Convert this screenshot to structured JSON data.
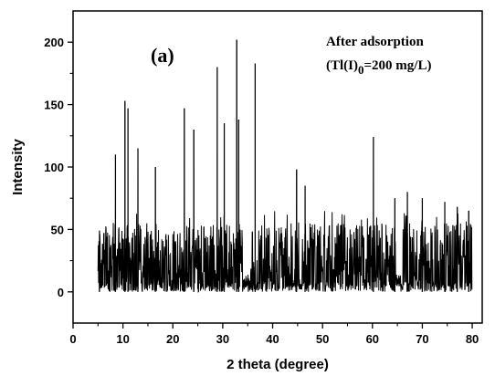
{
  "chart_data": {
    "type": "line",
    "panel_label": "(a)",
    "annotation": {
      "line1": "After adsorption",
      "line2_prefix": "(Tl(I)",
      "line2_sub": "0",
      "line2_suffix": "=200 mg/L)"
    },
    "xlabel": "2 theta (degree)",
    "ylabel": "Intensity",
    "xlim": [
      0,
      82
    ],
    "ylim": [
      -25,
      225
    ],
    "xticks": [
      0,
      10,
      20,
      30,
      40,
      50,
      60,
      70,
      80
    ],
    "yticks": [
      0,
      50,
      100,
      150,
      200
    ],
    "grid": false,
    "series": [
      {
        "x_range": [
          5,
          80
        ],
        "baseline": 0,
        "typical_max": 55,
        "peaks": [
          {
            "x": 5.3,
            "y": 49
          },
          {
            "x": 8.5,
            "y": 110
          },
          {
            "x": 10.4,
            "y": 153
          },
          {
            "x": 11.0,
            "y": 147
          },
          {
            "x": 13.0,
            "y": 115
          },
          {
            "x": 16.5,
            "y": 100
          },
          {
            "x": 22.3,
            "y": 147
          },
          {
            "x": 24.2,
            "y": 130
          },
          {
            "x": 28.9,
            "y": 180
          },
          {
            "x": 30.3,
            "y": 135
          },
          {
            "x": 32.8,
            "y": 202
          },
          {
            "x": 33.2,
            "y": 138
          },
          {
            "x": 36.5,
            "y": 183
          },
          {
            "x": 44.8,
            "y": 98
          },
          {
            "x": 46.5,
            "y": 85
          },
          {
            "x": 60.2,
            "y": 124
          },
          {
            "x": 64.5,
            "y": 75
          },
          {
            "x": 67.0,
            "y": 80
          },
          {
            "x": 70.0,
            "y": 75
          },
          {
            "x": 74.5,
            "y": 72
          },
          {
            "x": 77.0,
            "y": 68
          },
          {
            "x": 79.3,
            "y": 65
          }
        ],
        "gaps": [
          [
            34.0,
            35.5
          ],
          [
            64.6,
            66.0
          ]
        ]
      }
    ]
  }
}
